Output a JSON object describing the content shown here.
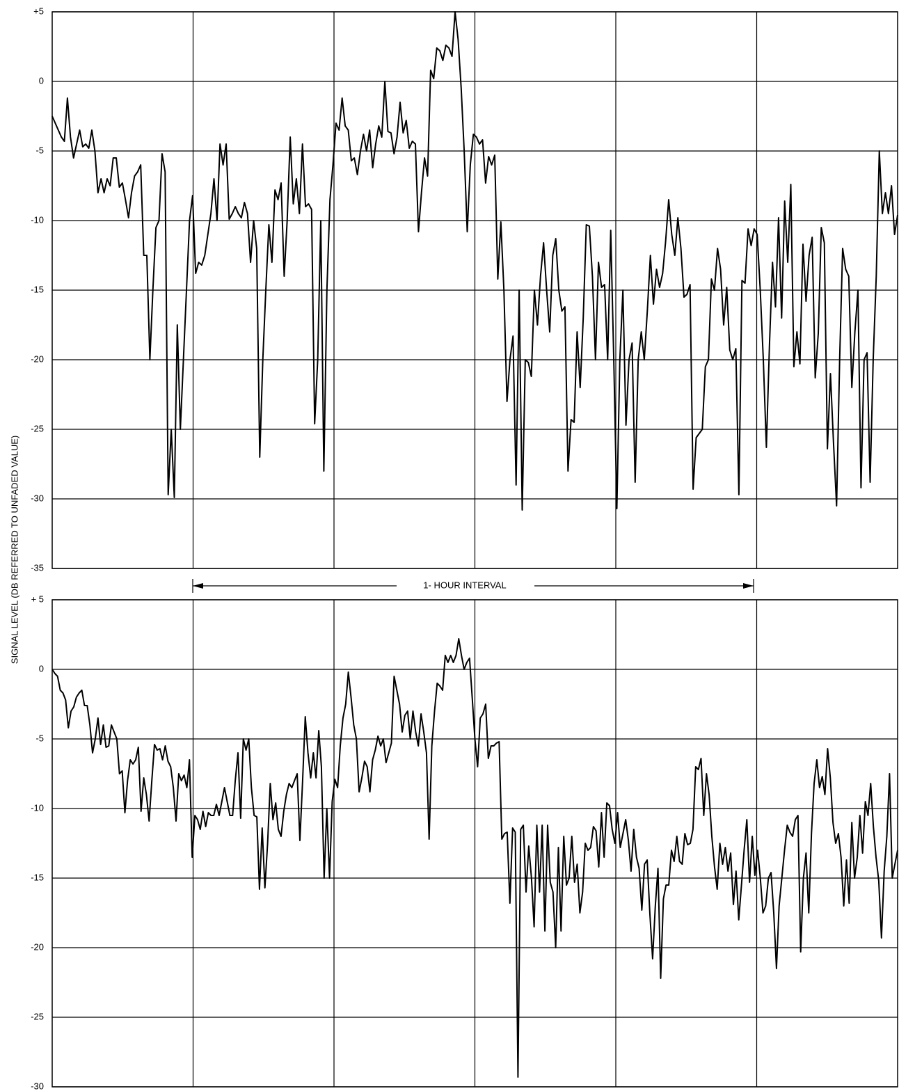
{
  "chart_data": [
    {
      "type": "line",
      "ylabel": "SIGNAL LEVEL (DB REFERRED TO UNFADED VALUE)",
      "annotation": "1- HOUR INTERVAL",
      "color": "#000000",
      "grid": true,
      "ylim": [
        -35,
        5
      ],
      "yticks": [
        {
          "value": 5,
          "label": "+5"
        },
        0,
        -5,
        -10,
        -15,
        -20,
        -25,
        -30,
        -35
      ],
      "values": [
        -2.5,
        -3,
        -3.5,
        -4,
        -4.3,
        -1.2,
        -4,
        -5.5,
        -4.5,
        -3.5,
        -4.7,
        -4.5,
        -4.8,
        -3.5,
        -5,
        -8,
        -7,
        -8,
        -7,
        -7.5,
        -5.5,
        -5.5,
        -7.6,
        -7.3,
        -8.5,
        -9.8,
        -8,
        -6.8,
        -6.5,
        -6,
        -12.5,
        -12.5,
        -20,
        -15,
        -10.5,
        -10,
        -5.2,
        -6.5,
        -29.7,
        -25,
        -29.9,
        -17.5,
        -25,
        -20,
        -15,
        -10,
        -8.2,
        -13.8,
        -13,
        -13.2,
        -12.5,
        -11,
        -9.5,
        -7,
        -10,
        -4.5,
        -6,
        -4.5,
        -9.9,
        -9.5,
        -9,
        -9.5,
        -9.8,
        -8.7,
        -9.5,
        -13,
        -10,
        -12,
        -27,
        -20,
        -15,
        -10.3,
        -13,
        -7.8,
        -8.5,
        -7.3,
        -14,
        -10,
        -4,
        -8.8,
        -7,
        -9.5,
        -4.5,
        -9,
        -8.8,
        -9.2,
        -24.6,
        -20,
        -10,
        -28,
        -15,
        -8.5,
        -6,
        -3,
        -3.5,
        -1.2,
        -3.2,
        -3.5,
        -5.7,
        -5.5,
        -6.7,
        -5,
        -3.8,
        -5,
        -3.5,
        -6.2,
        -4.5,
        -3.2,
        -4,
        0,
        -3.6,
        -3.7,
        -5.2,
        -4,
        -1.5,
        -3.7,
        -2.8,
        -4.8,
        -4.3,
        -4.5,
        -10.8,
        -8,
        -5.5,
        -6.8,
        0.8,
        0.2,
        2.4,
        2.2,
        1.5,
        2.6,
        2.4,
        1.8,
        5,
        3,
        -0.5,
        -5,
        -10.8,
        -6,
        -3.8,
        -4,
        -4.5,
        -4.2,
        -7.3,
        -5.4,
        -6,
        -5.3,
        -14.2,
        -10.1,
        -15,
        -23,
        -20,
        -18.3,
        -29,
        -15,
        -30.8,
        -20,
        -20.2,
        -21.2,
        -15,
        -17.5,
        -14,
        -11.6,
        -15,
        -18,
        -12.5,
        -11.3,
        -15,
        -16.5,
        -16.2,
        -28,
        -24.3,
        -24.5,
        -18,
        -22,
        -17,
        -10.3,
        -10.4,
        -14,
        -20,
        -13,
        -14.8,
        -14.6,
        -20,
        -10.7,
        -20,
        -30.7,
        -20,
        -15,
        -24.7,
        -20,
        -18.8,
        -28.8,
        -20,
        -18,
        -20,
        -16.5,
        -12.5,
        -16,
        -13.5,
        -14.8,
        -13.8,
        -11.5,
        -8.5,
        -11,
        -12.5,
        -9.8,
        -12,
        -15.5,
        -15.3,
        -14.6,
        -29.3,
        -25.6,
        -25.3,
        -25,
        -20.5,
        -20,
        -14.2,
        -15,
        -12,
        -13.5,
        -17.5,
        -14.8,
        -19.3,
        -20,
        -19.2,
        -29.7,
        -14.3,
        -14.5,
        -10.6,
        -11.8,
        -10.6,
        -11,
        -15,
        -20,
        -26.3,
        -19,
        -13,
        -16.2,
        -9.8,
        -17,
        -8.6,
        -13,
        -7.4,
        -20.5,
        -18,
        -20.3,
        -11.7,
        -15.8,
        -12.5,
        -11.2,
        -21.3,
        -18.1,
        -10.5,
        -11.6,
        -26.4,
        -21,
        -26,
        -30.5,
        -20,
        -12,
        -13.5,
        -14,
        -22,
        -18,
        -15,
        -29.2,
        -20,
        -19.5,
        -28.8,
        -20,
        -14,
        -5,
        -9.5,
        -8,
        -9.5,
        -7.5,
        -11,
        -9.6
      ]
    },
    {
      "type": "line",
      "color": "#000000",
      "grid": true,
      "ylim": [
        -30,
        5
      ],
      "yticks": [
        {
          "value": 5,
          "label": "+ 5"
        },
        0,
        -5,
        -10,
        -15,
        -20,
        -25,
        -30
      ],
      "values": [
        0,
        -0.3,
        -0.5,
        -1.5,
        -1.7,
        -2.2,
        -4.2,
        -3,
        -2.7,
        -2,
        -1.7,
        -1.5,
        -2.6,
        -2.6,
        -4,
        -6,
        -5,
        -3.5,
        -5.4,
        -4,
        -5.6,
        -5.5,
        -4,
        -4.5,
        -5,
        -7.5,
        -7.3,
        -10.3,
        -8,
        -6.5,
        -6.8,
        -6.5,
        -5.6,
        -10.2,
        -7.8,
        -9,
        -10.9,
        -8,
        -5.4,
        -5.8,
        -5.7,
        -6.5,
        -5.5,
        -6.6,
        -7,
        -8.5,
        -10.9,
        -7.5,
        -8,
        -7.6,
        -8.5,
        -6.5,
        -13.5,
        -10.5,
        -10.8,
        -11.5,
        -10.2,
        -11.3,
        -10.3,
        -10.5,
        -10.5,
        -9.7,
        -10.5,
        -9.5,
        -8.5,
        -9.5,
        -10.5,
        -10.5,
        -8,
        -6,
        -10.7,
        -5,
        -5.8,
        -5,
        -8.5,
        -10.5,
        -10.6,
        -15.8,
        -11.4,
        -15.7,
        -12.5,
        -8.2,
        -10.8,
        -9.6,
        -11.5,
        -12,
        -10.2,
        -9,
        -8.2,
        -8.5,
        -8,
        -7.5,
        -12.3,
        -8,
        -3.4,
        -6,
        -7.8,
        -6,
        -7.8,
        -4.4,
        -7,
        -15,
        -10,
        -15,
        -9.5,
        -7.9,
        -8.5,
        -5.5,
        -3.5,
        -2.5,
        -0.2,
        -2,
        -4,
        -5,
        -8.8,
        -7.8,
        -6.6,
        -7,
        -8.8,
        -6.5,
        -5.8,
        -4.8,
        -5.5,
        -5,
        -6.7,
        -6,
        -5.3,
        -0.5,
        -1.5,
        -2.5,
        -4.5,
        -3.3,
        -3,
        -5,
        -3,
        -4.5,
        -5.5,
        -3.2,
        -4.5,
        -6,
        -12.2,
        -5.5,
        -3,
        -1,
        -1.2,
        -1.5,
        1,
        0.5,
        1,
        0.5,
        1,
        2.2,
        1,
        0,
        0.5,
        0.8,
        -2,
        -5,
        -7,
        -3.5,
        -3.2,
        -2.5,
        -6.4,
        -5.5,
        -5.5,
        -5.3,
        -5.2,
        -12.2,
        -11.8,
        -11.7,
        -16.8,
        -11.4,
        -11.7,
        -29.3,
        -11.5,
        -11.2,
        -16,
        -12.7,
        -15,
        -18.5,
        -11.2,
        -16,
        -11.2,
        -18.8,
        -11.2,
        -15.3,
        -16,
        -20,
        -12.8,
        -18.8,
        -12,
        -15.5,
        -15,
        -12,
        -15.3,
        -14,
        -17.5,
        -16,
        -12.5,
        -13,
        -12.8,
        -11.3,
        -11.6,
        -14.2,
        -10.3,
        -13.5,
        -9.6,
        -9.8,
        -11.5,
        -12.5,
        -10.3,
        -12.8,
        -11.8,
        -10.8,
        -12.3,
        -14.5,
        -11.5,
        -13.5,
        -14.3,
        -17.3,
        -14,
        -13.7,
        -17.6,
        -20.8,
        -17,
        -14.3,
        -22.2,
        -16.5,
        -15.5,
        -15.5,
        -13,
        -13.8,
        -12,
        -13.8,
        -14,
        -11.8,
        -12.6,
        -12.5,
        -11.5,
        -7,
        -7.2,
        -6.4,
        -10.5,
        -7.5,
        -9,
        -12,
        -14.2,
        -15.8,
        -12.5,
        -14,
        -12.8,
        -14.5,
        -13.2,
        -16.9,
        -14.5,
        -18,
        -15.5,
        -13,
        -10.8,
        -15.3,
        -12,
        -14.8,
        -13,
        -15,
        -17.5,
        -17,
        -15,
        -14.6,
        -17.5,
        -21.5,
        -17,
        -15,
        -13,
        -11.2,
        -11.7,
        -12,
        -10.8,
        -10.5,
        -20.3,
        -15,
        -13.2,
        -17.5,
        -11.8,
        -8.2,
        -6.5,
        -8.5,
        -7.7,
        -9,
        -5.7,
        -7.8,
        -11,
        -12.5,
        -11.8,
        -13.5,
        -17,
        -13.7,
        -16.8,
        -11,
        -15,
        -13.5,
        -10.5,
        -13.2,
        -9.5,
        -10.5,
        -8.2,
        -11.3,
        -13.5,
        -15.2,
        -19.3,
        -14.5,
        -12,
        -7.5,
        -15,
        -14,
        -13
      ]
    }
  ]
}
